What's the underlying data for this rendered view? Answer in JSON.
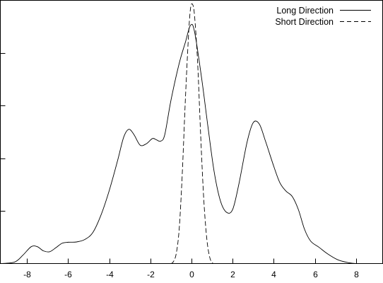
{
  "chart_data": {
    "type": "line",
    "title": "",
    "xlabel": "",
    "ylabel": "",
    "xlim": [
      -9.3,
      9.3
    ],
    "ylim": [
      0,
      1
    ],
    "grid": false,
    "legend_position": "top-right",
    "x_ticks": [
      -8,
      -6,
      -4,
      -2,
      0,
      2,
      4,
      6,
      8
    ],
    "x_tick_labels": [
      "-8",
      "-6",
      "-4",
      "-2",
      "0",
      "2",
      "4",
      "6",
      "8"
    ],
    "y_ticks": [
      0.2,
      0.4,
      0.6,
      0.8
    ],
    "series": [
      {
        "name": "Long Direction",
        "style": "solid",
        "color": "#000000",
        "points": [
          [
            -9.3,
            0.0
          ],
          [
            -8.6,
            0.006
          ],
          [
            -8.2,
            0.032
          ],
          [
            -7.8,
            0.064
          ],
          [
            -7.5,
            0.064
          ],
          [
            -7.2,
            0.048
          ],
          [
            -6.9,
            0.045
          ],
          [
            -6.6,
            0.06
          ],
          [
            -6.3,
            0.077
          ],
          [
            -6.0,
            0.081
          ],
          [
            -5.6,
            0.082
          ],
          [
            -5.2,
            0.091
          ],
          [
            -4.8,
            0.118
          ],
          [
            -4.4,
            0.185
          ],
          [
            -4.0,
            0.278
          ],
          [
            -3.6,
            0.39
          ],
          [
            -3.3,
            0.48
          ],
          [
            -3.05,
            0.51
          ],
          [
            -2.8,
            0.49
          ],
          [
            -2.5,
            0.45
          ],
          [
            -2.2,
            0.455
          ],
          [
            -1.9,
            0.475
          ],
          [
            -1.7,
            0.47
          ],
          [
            -1.5,
            0.465
          ],
          [
            -1.3,
            0.49
          ],
          [
            -1.0,
            0.62
          ],
          [
            -0.6,
            0.76
          ],
          [
            -0.3,
            0.84
          ],
          [
            -0.05,
            0.905
          ],
          [
            0.15,
            0.88
          ],
          [
            0.5,
            0.7
          ],
          [
            0.8,
            0.52
          ],
          [
            1.1,
            0.35
          ],
          [
            1.4,
            0.24
          ],
          [
            1.7,
            0.195
          ],
          [
            2.0,
            0.205
          ],
          [
            2.3,
            0.3
          ],
          [
            2.7,
            0.46
          ],
          [
            3.0,
            0.535
          ],
          [
            3.3,
            0.53
          ],
          [
            3.6,
            0.465
          ],
          [
            4.0,
            0.37
          ],
          [
            4.3,
            0.307
          ],
          [
            4.6,
            0.275
          ],
          [
            4.9,
            0.255
          ],
          [
            5.2,
            0.205
          ],
          [
            5.5,
            0.13
          ],
          [
            5.8,
            0.085
          ],
          [
            6.2,
            0.062
          ],
          [
            6.6,
            0.038
          ],
          [
            7.1,
            0.015
          ],
          [
            7.6,
            0.004
          ],
          [
            8.0,
            0.0
          ]
        ]
      },
      {
        "name": "Short Direction",
        "style": "dashed",
        "color": "#000000",
        "points": [
          [
            -1.0,
            0.0
          ],
          [
            -0.9,
            0.005
          ],
          [
            -0.75,
            0.035
          ],
          [
            -0.6,
            0.13
          ],
          [
            -0.45,
            0.34
          ],
          [
            -0.3,
            0.62
          ],
          [
            -0.15,
            0.86
          ],
          [
            -0.05,
            0.968
          ],
          [
            0.05,
            0.985
          ],
          [
            0.15,
            0.94
          ],
          [
            0.3,
            0.76
          ],
          [
            0.45,
            0.48
          ],
          [
            0.6,
            0.24
          ],
          [
            0.75,
            0.09
          ],
          [
            0.9,
            0.02
          ],
          [
            1.05,
            0.0
          ]
        ]
      }
    ]
  }
}
